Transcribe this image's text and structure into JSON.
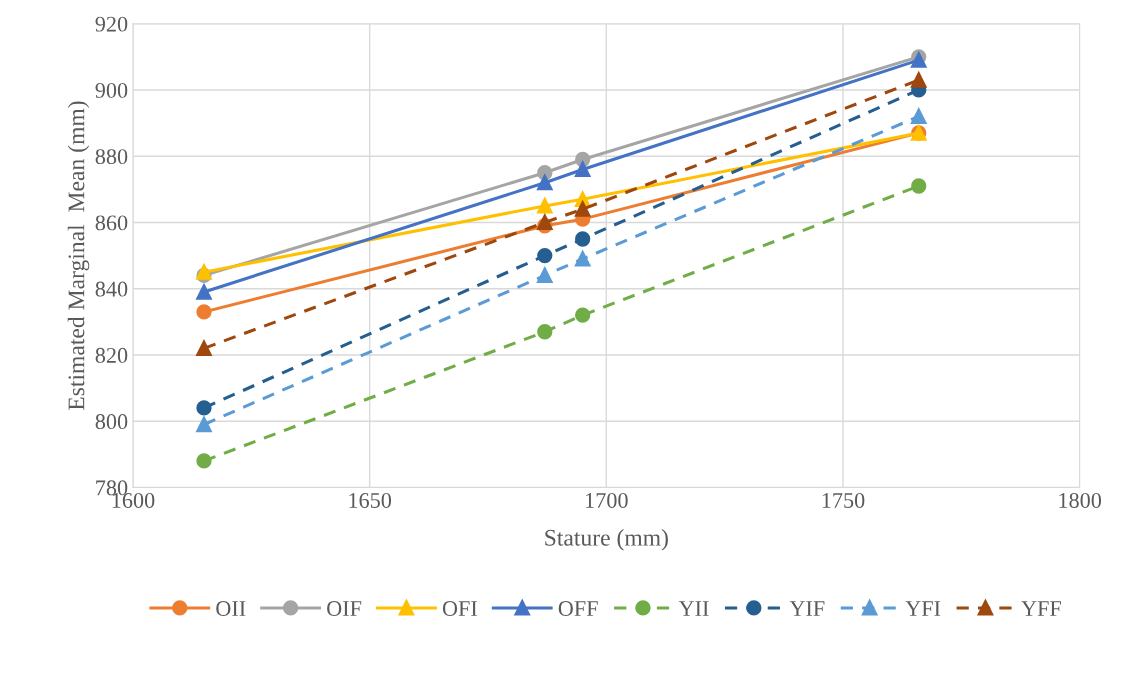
{
  "chart_data": {
    "type": "line",
    "xlabel": "Stature (mm)",
    "ylabel": "Estimated Marginal  Mean (mm)",
    "x": [
      1615,
      1687,
      1695,
      1766
    ],
    "xlim": [
      1600,
      1800
    ],
    "xticks": [
      1600,
      1650,
      1700,
      1750,
      1800
    ],
    "ylim": [
      780,
      920
    ],
    "yticks": [
      780,
      800,
      820,
      840,
      860,
      880,
      900,
      920
    ],
    "grid": true,
    "legend": "bottom",
    "series": [
      {
        "name": "OII",
        "color": "#ed7d31",
        "marker": "circle",
        "line_style": "solid",
        "values": [
          833,
          859,
          861,
          887
        ]
      },
      {
        "name": "OIF",
        "color": "#a5a5a5",
        "marker": "circle",
        "line_style": "solid",
        "values": [
          844,
          875,
          879,
          910
        ]
      },
      {
        "name": "OFI",
        "color": "#ffc000",
        "marker": "triangle",
        "line_style": "solid",
        "values": [
          845,
          865,
          867,
          887
        ]
      },
      {
        "name": "OFF",
        "color": "#4472c4",
        "marker": "triangle",
        "line_style": "solid",
        "values": [
          839,
          872,
          876,
          909
        ]
      },
      {
        "name": "YII",
        "color": "#70ad47",
        "marker": "circle",
        "line_style": "dashed",
        "values": [
          788,
          827,
          832,
          871
        ]
      },
      {
        "name": "YIF",
        "color": "#255e91",
        "marker": "circle",
        "line_style": "dashed",
        "values": [
          804,
          850,
          855,
          900
        ]
      },
      {
        "name": "YFI",
        "color": "#5b9bd5",
        "marker": "triangle",
        "line_style": "dashed",
        "values": [
          799,
          844,
          849,
          892
        ]
      },
      {
        "name": "YFF",
        "color": "#9e480e",
        "marker": "triangle",
        "line_style": "dashed",
        "values": [
          822,
          860,
          864,
          903
        ]
      }
    ]
  }
}
